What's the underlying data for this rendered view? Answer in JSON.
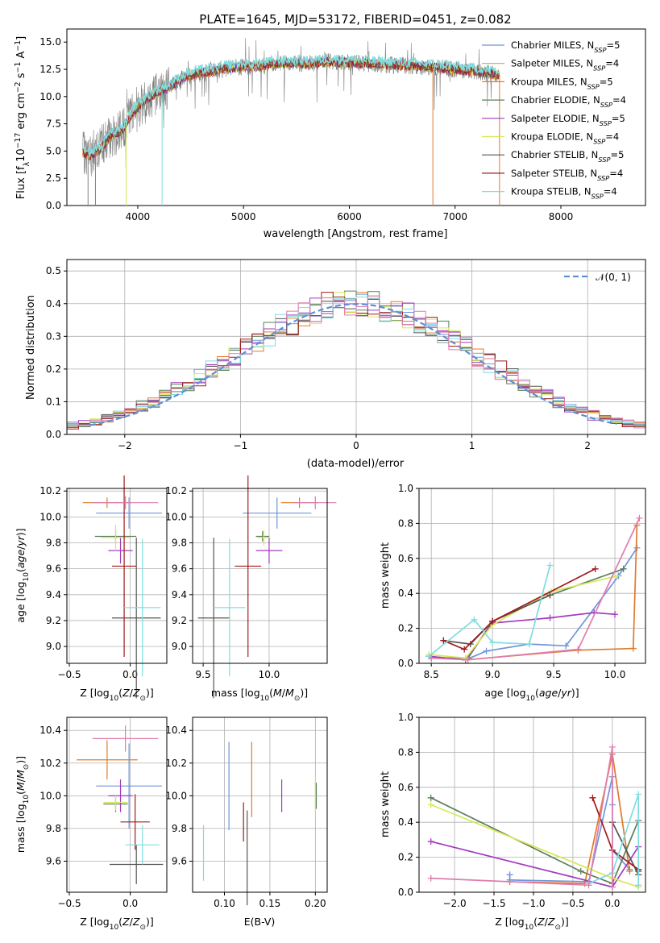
{
  "figure": {
    "title": "PLATE=1645, MJD=53172, FIBERID=0451, z=0.082"
  },
  "chart_data": [
    {
      "type": "line",
      "id": "spectrum",
      "title": "PLATE=1645, MJD=53172, FIBERID=0451, z=0.082",
      "xlabel": "wavelength [Angstrom, rest frame]",
      "ylabel": "Flux [fλ10⁻¹⁷ erg cm⁻² s⁻¹ A⁻¹]",
      "xlim": [
        3330,
        8800
      ],
      "ylim": [
        0,
        16.2
      ],
      "xticks": [
        "4000",
        "5000",
        "6000",
        "7000",
        "8000"
      ],
      "yticks": [
        "0.0",
        "2.5",
        "5.0",
        "7.5",
        "10.0",
        "12.5",
        "15.0"
      ],
      "legend_position": "right",
      "data_series": {
        "name": "data",
        "color": "#808080"
      },
      "envelope": [
        [
          3480,
          4.8
        ],
        [
          3550,
          4.6
        ],
        [
          3650,
          5.2
        ],
        [
          3750,
          6.4
        ],
        [
          3850,
          6.8
        ],
        [
          3950,
          8.5
        ],
        [
          4050,
          9.5
        ],
        [
          4150,
          10.2
        ],
        [
          4250,
          10.6
        ],
        [
          4350,
          11.2
        ],
        [
          4450,
          11.8
        ],
        [
          4550,
          12.1
        ],
        [
          4700,
          12.3
        ],
        [
          4850,
          12.6
        ],
        [
          5000,
          12.7
        ],
        [
          5150,
          12.8
        ],
        [
          5300,
          13.0
        ],
        [
          5450,
          13.1
        ],
        [
          5600,
          13.0
        ],
        [
          5800,
          13.2
        ],
        [
          6000,
          13.1
        ],
        [
          6200,
          13.0
        ],
        [
          6400,
          12.9
        ],
        [
          6600,
          12.8
        ],
        [
          6800,
          12.7
        ],
        [
          7000,
          12.5
        ],
        [
          7200,
          12.3
        ],
        [
          7420,
          12.0
        ]
      ],
      "series": [
        {
          "name": "Chabrier MILES, N_SSP=5",
          "label_main": "Chabrier MILES, N",
          "label_sub": "SSP",
          "label_tail": "=5",
          "color": "#6f95dc"
        },
        {
          "name": "Salpeter MILES, N_SSP=4",
          "label_main": "Salpeter MILES, N",
          "label_sub": "SSP",
          "label_tail": "=4",
          "color": "#d9a441"
        },
        {
          "name": "Kroupa MILES, N_SSP=5",
          "label_main": "Kroupa MILES, N",
          "label_sub": "SSP",
          "label_tail": "=5",
          "color": "#e07b2a"
        },
        {
          "name": "Chabrier ELODIE, N_SSP=4",
          "label_main": "Chabrier ELODIE, N",
          "label_sub": "SSP",
          "label_tail": "=4",
          "color": "#5a7f5a"
        },
        {
          "name": "Salpeter ELODIE, N_SSP=5",
          "label_main": "Salpeter ELODIE, N",
          "label_sub": "SSP",
          "label_tail": "=5",
          "color": "#a23bbd"
        },
        {
          "name": "Kroupa ELODIE, N_SSP=4",
          "label_main": "Kroupa ELODIE, N",
          "label_sub": "SSP",
          "label_tail": "=4",
          "color": "#d6e85a"
        },
        {
          "name": "Chabrier STELIB, N_SSP=5",
          "label_main": "Chabrier STELIB, N",
          "label_sub": "SSP",
          "label_tail": "=5",
          "color": "#555555"
        },
        {
          "name": "Salpeter STELIB, N_SSP=4",
          "label_main": "Salpeter STELIB, N",
          "label_sub": "SSP",
          "label_tail": "=4",
          "color": "#a11a1a"
        },
        {
          "name": "Kroupa STELIB, N_SSP=4",
          "label_main": "Kroupa STELIB, N",
          "label_sub": "SSP",
          "label_tail": "=4",
          "color": "#7fdde0"
        }
      ]
    },
    {
      "type": "histogram",
      "id": "residuals",
      "xlabel": "(data-model)/error",
      "ylabel": "Normed distribution",
      "xlim": [
        -2.5,
        2.5
      ],
      "ylim": [
        0,
        0.535
      ],
      "xticks": [
        -2,
        -1,
        0,
        1,
        2
      ],
      "xtick_labels": [
        "−2",
        "−1",
        "0",
        "1",
        "2"
      ],
      "yticks": [
        "0.0",
        "0.1",
        "0.2",
        "0.3",
        "0.4",
        "0.5"
      ],
      "legend": "𝒩(0, 1)",
      "legend_position": "top-right",
      "normal_curve_color": "#5b8fd6",
      "bin_width": 0.1,
      "colors": [
        "#6f95dc",
        "#e07b2a",
        "#5a7f5a",
        "#a23bbd",
        "#d6e85a",
        "#555555",
        "#a11a1a",
        "#7fdde0",
        "#e07bb0"
      ]
    },
    {
      "type": "scatter",
      "id": "age-vs-z",
      "xlabel": "Z [log10(Z/Z⊙)]",
      "ylabel": "age [log10(age/yr)]",
      "xlim": [
        -0.52,
        0.3
      ],
      "ylim": [
        8.87,
        10.22
      ],
      "xticks": [
        -0.5,
        0.0,
        0.5
      ],
      "xtick_labels": [
        "−0.5",
        "0.0",
        "0.5"
      ],
      "yticks": [
        "9.0",
        "9.2",
        "9.4",
        "9.6",
        "9.8",
        "10.0",
        "10.2"
      ],
      "points": [
        {
          "color": "#6f95dc",
          "x": -0.01,
          "y": 10.03,
          "xe": 0.27,
          "ye": 0.12
        },
        {
          "color": "#e07b2a",
          "x": -0.19,
          "y": 10.11,
          "xe": 0.2,
          "ye": 0.04
        },
        {
          "color": "#5a7f5a",
          "x": -0.12,
          "y": 9.85,
          "xe": 0.17,
          "ye": 0.04
        },
        {
          "color": "#a23bbd",
          "x": -0.08,
          "y": 9.74,
          "xe": 0.1,
          "ye": 0.1
        },
        {
          "color": "#d6e85a",
          "x": -0.12,
          "y": 9.84,
          "xe": 0.12,
          "ye": 0.1
        },
        {
          "color": "#555555",
          "x": 0.05,
          "y": 9.22,
          "xe": 0.2,
          "ye": 0.62
        },
        {
          "color": "#a11a1a",
          "x": -0.05,
          "y": 9.62,
          "xe": 0.1,
          "ye": 0.7
        },
        {
          "color": "#7fdde0",
          "x": 0.1,
          "y": 9.3,
          "xe": 0.15,
          "ye": 0.53
        },
        {
          "color": "#e07bb0",
          "x": -0.04,
          "y": 10.11,
          "xe": 0.27,
          "ye": 0.05
        }
      ]
    },
    {
      "type": "scatter",
      "id": "age-vs-mass",
      "xlabel": "mass [log10(M/M⊙)]",
      "ylabel": "",
      "xlim": [
        9.42,
        10.44
      ],
      "ylim": [
        8.87,
        10.22
      ],
      "xticks": [
        9.5,
        10.0
      ],
      "xtick_labels": [
        "9.5",
        "10.0"
      ],
      "yticks": [
        "9.0",
        "9.2",
        "9.4",
        "9.6",
        "9.8",
        "10.0",
        "10.2"
      ],
      "points": [
        {
          "color": "#6f95dc",
          "x": 10.06,
          "y": 10.03,
          "xe": 0.26,
          "ye": 0.12
        },
        {
          "color": "#e07b2a",
          "x": 10.23,
          "y": 10.11,
          "xe": 0.14,
          "ye": 0.04
        },
        {
          "color": "#5a7f5a",
          "x": 9.95,
          "y": 9.85,
          "xe": 0.05,
          "ye": 0.04
        },
        {
          "color": "#a23bbd",
          "x": 10.0,
          "y": 9.74,
          "xe": 0.1,
          "ye": 0.1
        },
        {
          "color": "#d6e85a",
          "x": 9.96,
          "y": 9.84,
          "xe": 0.05,
          "ye": 0.06
        },
        {
          "color": "#555555",
          "x": 9.58,
          "y": 9.22,
          "xe": 0.12,
          "ye": 0.62
        },
        {
          "color": "#a11a1a",
          "x": 9.84,
          "y": 9.62,
          "xe": 0.1,
          "ye": 0.7
        },
        {
          "color": "#7fdde0",
          "x": 9.7,
          "y": 9.3,
          "xe": 0.12,
          "ye": 0.53
        },
        {
          "color": "#e07bb0",
          "x": 10.35,
          "y": 10.11,
          "xe": 0.16,
          "ye": 0.05
        }
      ]
    },
    {
      "type": "line",
      "id": "mass-weight-vs-age",
      "xlabel": "age [log10(age/yr)]",
      "ylabel": "mass weight",
      "xlim": [
        8.4,
        10.25
      ],
      "ylim": [
        0,
        1.0
      ],
      "xticks": [
        8.5,
        9.0,
        9.5,
        10.0
      ],
      "xtick_labels": [
        "8.5",
        "9.0",
        "9.5",
        "10.0"
      ],
      "yticks": [
        "0.0",
        "0.2",
        "0.4",
        "0.6",
        "0.8",
        "1.0"
      ],
      "series": [
        {
          "color": "#6f95dc",
          "points": [
            [
              8.48,
              0.04
            ],
            [
              8.78,
              0.02
            ],
            [
              8.95,
              0.07
            ],
            [
              9.3,
              0.11
            ],
            [
              9.6,
              0.1
            ],
            [
              10.03,
              0.5
            ],
            [
              10.18,
              0.66
            ]
          ]
        },
        {
          "color": "#e07b2a",
          "points": [
            [
              8.48,
              0.04
            ],
            [
              8.78,
              0.02
            ],
            [
              9.7,
              0.075
            ],
            [
              10.15,
              0.085
            ],
            [
              10.18,
              0.79
            ]
          ]
        },
        {
          "color": "#5a7f5a",
          "points": [
            [
              8.5,
              0.03
            ],
            [
              8.8,
              0.03
            ],
            [
              9.0,
              0.24
            ],
            [
              9.47,
              0.39
            ],
            [
              10.07,
              0.54
            ]
          ]
        },
        {
          "color": "#a23bbd",
          "points": [
            [
              8.48,
              0.04
            ],
            [
              8.78,
              0.02
            ],
            [
              9.0,
              0.23
            ],
            [
              9.47,
              0.26
            ],
            [
              9.83,
              0.29
            ],
            [
              10.0,
              0.28
            ]
          ]
        },
        {
          "color": "#d6e85a",
          "points": [
            [
              8.48,
              0.05
            ],
            [
              8.78,
              0.03
            ],
            [
              9.0,
              0.22
            ],
            [
              9.48,
              0.41
            ],
            [
              10.02,
              0.5
            ]
          ]
        },
        {
          "color": "#555555",
          "points": [
            [
              8.6,
              0.13
            ],
            [
              8.82,
              0.11
            ],
            [
              9.0,
              0.24
            ],
            [
              9.47,
              0.39
            ]
          ]
        },
        {
          "color": "#a11a1a",
          "points": [
            [
              8.6,
              0.13
            ],
            [
              8.77,
              0.08
            ],
            [
              9.0,
              0.24
            ],
            [
              9.84,
              0.54
            ]
          ]
        },
        {
          "color": "#7fdde0",
          "points": [
            [
              8.48,
              0.04
            ],
            [
              8.85,
              0.25
            ],
            [
              9.0,
              0.12
            ],
            [
              9.3,
              0.11
            ],
            [
              9.47,
              0.56
            ]
          ]
        },
        {
          "color": "#e07bb0",
          "points": [
            [
              8.5,
              0.03
            ],
            [
              8.8,
              0.02
            ],
            [
              9.7,
              0.08
            ],
            [
              10.2,
              0.83
            ]
          ]
        }
      ]
    },
    {
      "type": "scatter",
      "id": "mass-vs-z",
      "xlabel": "Z [log10(Z/Z⊙)]",
      "ylabel": "mass [log10(M/M⊙)]",
      "xlim": [
        -0.52,
        0.3
      ],
      "ylim": [
        9.41,
        10.48
      ],
      "xticks": [
        -0.5,
        0.0,
        0.5
      ],
      "xtick_labels": [
        "−0.5",
        "0.0",
        "0.5"
      ],
      "yticks": [
        "9.6",
        "9.8",
        "10.0",
        "10.2",
        "10.4"
      ],
      "points": [
        {
          "color": "#6f95dc",
          "x": -0.01,
          "y": 10.06,
          "xe": 0.27,
          "ye": 0.26
        },
        {
          "color": "#e07b2a",
          "x": -0.19,
          "y": 10.22,
          "xe": 0.25,
          "ye": 0.12
        },
        {
          "color": "#5a7f5a",
          "x": -0.12,
          "y": 9.95,
          "xe": 0.1,
          "ye": 0.05
        },
        {
          "color": "#a23bbd",
          "x": -0.08,
          "y": 10.0,
          "xe": 0.1,
          "ye": 0.1
        },
        {
          "color": "#d6e85a",
          "x": -0.12,
          "y": 9.96,
          "xe": 0.1,
          "ye": 0.05
        },
        {
          "color": "#555555",
          "x": 0.05,
          "y": 9.58,
          "xe": 0.22,
          "ye": 0.12
        },
        {
          "color": "#a11a1a",
          "x": 0.04,
          "y": 9.84,
          "xe": 0.12,
          "ye": 0.17
        },
        {
          "color": "#7fdde0",
          "x": 0.1,
          "y": 9.7,
          "xe": 0.14,
          "ye": 0.12
        },
        {
          "color": "#e07bb0",
          "x": -0.04,
          "y": 10.35,
          "xe": 0.27,
          "ye": 0.08
        }
      ]
    },
    {
      "type": "scatter",
      "id": "mass-vs-ebv",
      "xlabel": "E(B-V)",
      "ylabel": "",
      "xlim": [
        0.065,
        0.213
      ],
      "ylim": [
        9.41,
        10.48
      ],
      "xticks": [
        0.1,
        0.15,
        0.2
      ],
      "xtick_labels": [
        "0.10",
        "0.15",
        "0.20"
      ],
      "yticks": [
        "9.6",
        "9.8",
        "10.0",
        "10.2",
        "10.4"
      ],
      "points": [
        {
          "color": "#7fdde0",
          "x": 0.077,
          "y": 9.65,
          "xe": 0,
          "ye": 0.17
        },
        {
          "color": "#6f95dc",
          "x": 0.105,
          "y": 10.06,
          "xe": 0,
          "ye": 0.27
        },
        {
          "color": "#a11a1a",
          "x": 0.121,
          "y": 9.84,
          "xe": 0,
          "ye": 0.12
        },
        {
          "color": "#555555",
          "x": 0.125,
          "y": 9.62,
          "xe": 0,
          "ye": 0.29
        },
        {
          "color": "#e07b2a",
          "x": 0.13,
          "y": 10.1,
          "xe": 0,
          "ye": 0.23
        },
        {
          "color": "#a23bbd",
          "x": 0.163,
          "y": 10.0,
          "xe": 0,
          "ye": 0.1
        },
        {
          "color": "#d6e85a",
          "x": 0.2,
          "y": 10.0,
          "xe": 0,
          "ye": 0.1
        },
        {
          "color": "#5a7f5a",
          "x": 0.201,
          "y": 10.0,
          "xe": 0,
          "ye": 0.08
        }
      ]
    },
    {
      "type": "line",
      "id": "mass-weight-vs-z",
      "xlabel": "Z [log10(Z/Z⊙)]",
      "ylabel": "mass weight",
      "xlim": [
        -2.45,
        0.42
      ],
      "ylim": [
        0,
        1.0
      ],
      "xticks": [
        -2.0,
        -1.5,
        -1.0,
        -0.5,
        0.0
      ],
      "xtick_labels": [
        "−2.0",
        "−1.5",
        "−1.0",
        "−0.5",
        "0.0"
      ],
      "yticks": [
        "0.0",
        "0.2",
        "0.4",
        "0.6",
        "0.8",
        "1.0"
      ],
      "series": [
        {
          "color": "#6f95dc",
          "points": [
            [
              -1.3,
              0.1
            ],
            [
              -1.3,
              0.07
            ],
            [
              -0.3,
              0.06
            ],
            [
              0.0,
              0.66
            ],
            [
              0.0,
              0.5
            ],
            [
              0.0,
              0.24
            ],
            [
              0.22,
              0.13
            ]
          ]
        },
        {
          "color": "#e07b2a",
          "points": [
            [
              -1.3,
              0.06
            ],
            [
              -0.35,
              0.05
            ],
            [
              0.0,
              0.79
            ],
            [
              0.22,
              0.12
            ]
          ]
        },
        {
          "color": "#5a7f5a",
          "points": [
            [
              -2.3,
              0.54
            ],
            [
              -0.4,
              0.12
            ],
            [
              0.0,
              0.05
            ],
            [
              0.33,
              0.41
            ]
          ]
        },
        {
          "color": "#a23bbd",
          "points": [
            [
              -2.3,
              0.29
            ],
            [
              0.0,
              0.03
            ],
            [
              0.33,
              0.26
            ]
          ]
        },
        {
          "color": "#d6e85a",
          "points": [
            [
              -2.3,
              0.5
            ],
            [
              0.0,
              0.08
            ],
            [
              0.33,
              0.03
            ]
          ]
        },
        {
          "color": "#555555",
          "points": [
            [
              0.0,
              0.4
            ],
            [
              0.33,
              0.1
            ],
            [
              0.33,
              0.12
            ]
          ]
        },
        {
          "color": "#a11a1a",
          "points": [
            [
              -0.25,
              0.54
            ],
            [
              0.0,
              0.24
            ],
            [
              0.33,
              0.13
            ]
          ]
        },
        {
          "color": "#7fdde0",
          "points": [
            [
              -0.3,
              0.05
            ],
            [
              0.0,
              0.11
            ],
            [
              0.33,
              0.56
            ],
            [
              0.33,
              0.04
            ]
          ]
        },
        {
          "color": "#e07bb0",
          "points": [
            [
              -2.3,
              0.08
            ],
            [
              -0.3,
              0.04
            ],
            [
              0.0,
              0.83
            ],
            [
              0.0,
              0.03
            ]
          ]
        }
      ]
    }
  ]
}
